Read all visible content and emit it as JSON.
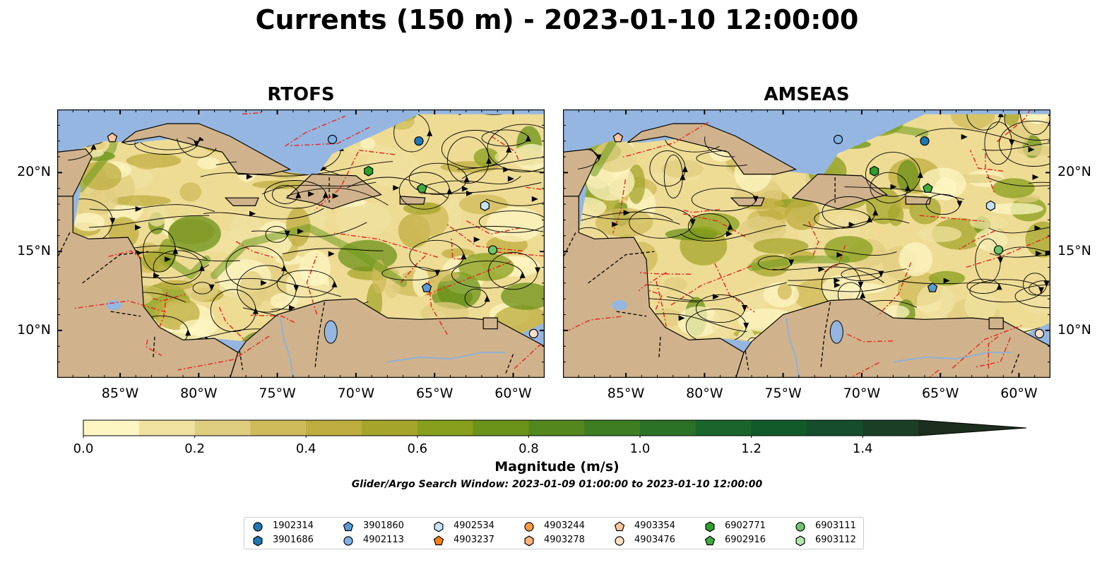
{
  "title": "Currents (150 m) - 2023-01-10 12:00:00",
  "panels": [
    {
      "title": "RTOFS"
    },
    {
      "title": "AMSEAS"
    }
  ],
  "axes": {
    "lon_labels": [
      "85°W",
      "80°W",
      "75°W",
      "70°W",
      "65°W",
      "60°W"
    ],
    "lat_labels": [
      "20°N",
      "15°N",
      "10°N"
    ],
    "lon_range": [
      -89,
      -58
    ],
    "lat_range": [
      7,
      24
    ]
  },
  "colorbar": {
    "label": "Magnitude (m/s)",
    "ticks": [
      "0.0",
      "0.2",
      "0.4",
      "0.6",
      "0.8",
      "1.0",
      "1.2",
      "1.4"
    ],
    "range": [
      0,
      1.5
    ],
    "extend": "max",
    "colors": [
      "#fdf6c3",
      "#f0e2a0",
      "#e0ce80",
      "#cfbb5a",
      "#bdae3f",
      "#a5a52c",
      "#879f1c",
      "#6b9219",
      "#53881f",
      "#3e7d21",
      "#2b7126",
      "#1a652b",
      "#135a2b",
      "#164d2b",
      "#1a3f26",
      "#1c2e1d"
    ]
  },
  "search_window": "Glider/Argo Search Window: 2023-01-09 01:00:00 to 2023-01-10 12:00:00",
  "legend": [
    {
      "id": "1902314",
      "shape": "circle",
      "color": "#1f78b4"
    },
    {
      "id": "3901686",
      "shape": "hexagon",
      "color": "#1f78b4"
    },
    {
      "id": "3901860",
      "shape": "pentagon",
      "color": "#5b9bd5"
    },
    {
      "id": "4902113",
      "shape": "circle",
      "color": "#7fb2e5"
    },
    {
      "id": "4902534",
      "shape": "hexagon",
      "color": "#c6e2f7"
    },
    {
      "id": "4903237",
      "shape": "pentagon",
      "color": "#ff7f0e"
    },
    {
      "id": "4903244",
      "shape": "circle",
      "color": "#fd9a45"
    },
    {
      "id": "4903278",
      "shape": "hexagon",
      "color": "#fdb27a"
    },
    {
      "id": "4903354",
      "shape": "pentagon",
      "color": "#fdc79d"
    },
    {
      "id": "4903476",
      "shape": "circle",
      "color": "#fde0c5"
    },
    {
      "id": "6902771",
      "shape": "hexagon",
      "color": "#2ca02c"
    },
    {
      "id": "6902916",
      "shape": "pentagon",
      "color": "#3daa3d"
    },
    {
      "id": "6903111",
      "shape": "circle",
      "color": "#6cc46c"
    },
    {
      "id": "6903112",
      "shape": "hexagon",
      "color": "#b5e6b0"
    }
  ],
  "markers": [
    {
      "id": "4903354",
      "lon": -85.5,
      "lat": 22.2
    },
    {
      "id": "4902113",
      "lon": -71.5,
      "lat": 22.1
    },
    {
      "id": "1902314",
      "lon": -66.0,
      "lat": 22.0
    },
    {
      "id": "6902771",
      "lon": -69.2,
      "lat": 20.1
    },
    {
      "id": "6902916",
      "lon": -65.8,
      "lat": 19.0
    },
    {
      "id": "4902534",
      "lon": -61.8,
      "lat": 17.9
    },
    {
      "id": "6903111",
      "lon": -61.3,
      "lat": 15.1
    },
    {
      "id": "3901860",
      "lon": -65.5,
      "lat": 12.7
    },
    {
      "id": "4903476",
      "lon": -58.7,
      "lat": 9.8
    }
  ]
}
